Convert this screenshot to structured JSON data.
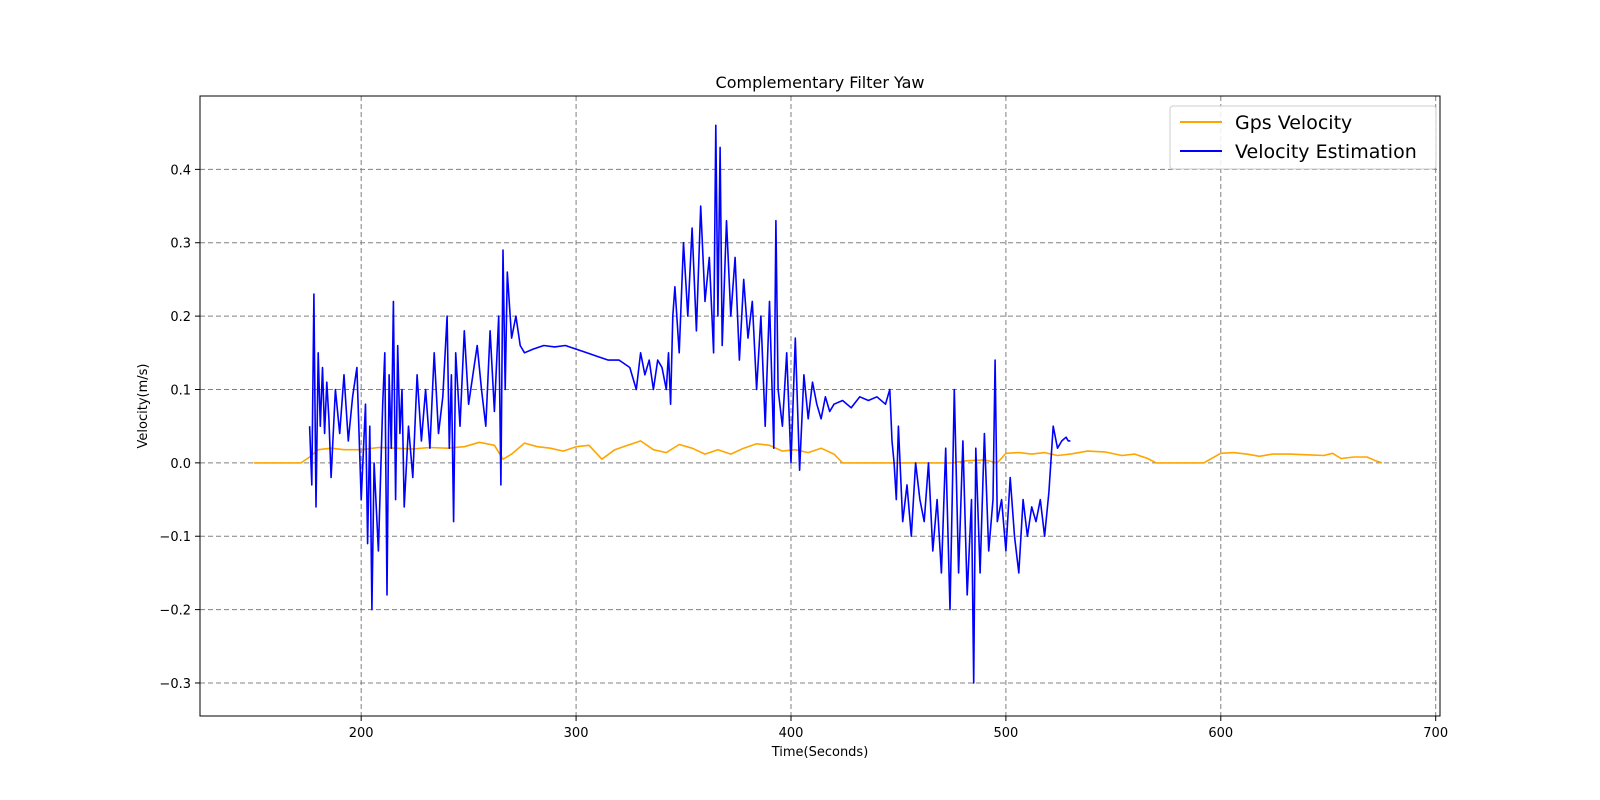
{
  "chart_data": {
    "type": "line",
    "title": "Complementary Filter Yaw",
    "xlabel": "Time(Seconds)",
    "ylabel": "Velocity(m/s)",
    "xlim": [
      125,
      702
    ],
    "ylim": [
      -0.345,
      0.5
    ],
    "xticks": [
      200,
      300,
      400,
      500,
      600,
      700
    ],
    "yticks": [
      -0.3,
      -0.2,
      -0.1,
      0.0,
      0.1,
      0.2,
      0.3,
      0.4
    ],
    "xtick_labels": [
      "200",
      "300",
      "400",
      "500",
      "600",
      "700"
    ],
    "ytick_labels": [
      "−0.3",
      "−0.2",
      "−0.1",
      "0.0",
      "0.1",
      "0.2",
      "0.3",
      "0.4"
    ],
    "grid": true,
    "legend_position": "top-right",
    "series": [
      {
        "name": "Gps Velocity",
        "color": "#ffa500",
        "x": [
          150,
          172,
          176,
          180,
          186,
          192,
          200,
          208,
          216,
          224,
          232,
          240,
          248,
          255,
          262,
          266,
          270,
          276,
          282,
          288,
          294,
          300,
          306,
          312,
          318,
          324,
          330,
          336,
          342,
          348,
          354,
          360,
          366,
          372,
          378,
          384,
          390,
          396,
          402,
          408,
          414,
          420,
          424,
          440,
          450,
          460,
          475,
          482,
          490,
          496,
          500,
          506,
          512,
          518,
          524,
          530,
          538,
          546,
          554,
          560,
          566,
          570,
          580,
          592,
          600,
          606,
          612,
          618,
          624,
          632,
          640,
          648,
          652,
          656,
          662,
          668,
          672,
          675
        ],
        "y": [
          0.0,
          0.0,
          0.008,
          0.018,
          0.02,
          0.018,
          0.018,
          0.021,
          0.02,
          0.019,
          0.021,
          0.02,
          0.022,
          0.028,
          0.024,
          0.005,
          0.012,
          0.027,
          0.022,
          0.02,
          0.016,
          0.022,
          0.024,
          0.005,
          0.018,
          0.024,
          0.03,
          0.018,
          0.014,
          0.025,
          0.02,
          0.012,
          0.018,
          0.012,
          0.02,
          0.026,
          0.024,
          0.016,
          0.018,
          0.014,
          0.02,
          0.012,
          0.0,
          0.0,
          0.0,
          0.0,
          0.0,
          0.003,
          0.004,
          0.0,
          0.013,
          0.014,
          0.012,
          0.014,
          0.01,
          0.012,
          0.016,
          0.015,
          0.01,
          0.012,
          0.006,
          0.0,
          0.0,
          0.0,
          0.013,
          0.014,
          0.012,
          0.009,
          0.012,
          0.012,
          0.011,
          0.01,
          0.013,
          0.006,
          0.008,
          0.008,
          0.003,
          0.0
        ]
      },
      {
        "name": "Velocity Estimation",
        "color": "#0000ff",
        "x": [
          176,
          177,
          178,
          179,
          180,
          181,
          182,
          183,
          184,
          185,
          186,
          188,
          190,
          192,
          194,
          196,
          198,
          200,
          202,
          203,
          204,
          205,
          206,
          208,
          210,
          211,
          212,
          213,
          214,
          215,
          216,
          217,
          218,
          219,
          220,
          222,
          224,
          226,
          228,
          230,
          232,
          234,
          236,
          238,
          240,
          241,
          242,
          243,
          244,
          246,
          248,
          250,
          252,
          254,
          256,
          258,
          260,
          262,
          264,
          265,
          266,
          267,
          268,
          270,
          272,
          274,
          276,
          280,
          285,
          290,
          295,
          300,
          305,
          310,
          315,
          320,
          325,
          328,
          330,
          332,
          334,
          336,
          338,
          340,
          342,
          343,
          344,
          345,
          346,
          348,
          350,
          352,
          354,
          356,
          358,
          360,
          362,
          364,
          365,
          366,
          367,
          368,
          370,
          372,
          374,
          376,
          378,
          380,
          382,
          384,
          386,
          388,
          390,
          392,
          393,
          394,
          396,
          398,
          400,
          402,
          404,
          406,
          408,
          410,
          412,
          414,
          416,
          418,
          420,
          424,
          428,
          432,
          436,
          440,
          444,
          446,
          447,
          448,
          449,
          450,
          452,
          454,
          456,
          458,
          460,
          462,
          464,
          466,
          468,
          470,
          472,
          474,
          475,
          476,
          478,
          480,
          482,
          484,
          485,
          486,
          488,
          490,
          492,
          494,
          495,
          496,
          498,
          500,
          502,
          504,
          506,
          508,
          510,
          512,
          514,
          516,
          518,
          520,
          522,
          524,
          526,
          528,
          529,
          530
        ],
        "y": [
          0.05,
          -0.03,
          0.23,
          -0.06,
          0.15,
          0.05,
          0.13,
          0.04,
          0.11,
          0.06,
          -0.02,
          0.1,
          0.04,
          0.12,
          0.03,
          0.09,
          0.13,
          -0.05,
          0.08,
          -0.11,
          0.05,
          -0.2,
          0.0,
          -0.12,
          0.08,
          0.15,
          -0.18,
          0.12,
          0.02,
          0.22,
          -0.05,
          0.16,
          0.04,
          0.1,
          -0.06,
          0.05,
          -0.02,
          0.12,
          0.03,
          0.1,
          0.02,
          0.15,
          0.04,
          0.09,
          0.2,
          0.02,
          0.12,
          -0.08,
          0.15,
          0.05,
          0.18,
          0.08,
          0.12,
          0.16,
          0.1,
          0.05,
          0.18,
          0.07,
          0.2,
          -0.03,
          0.29,
          0.1,
          0.26,
          0.17,
          0.2,
          0.16,
          0.15,
          0.155,
          0.16,
          0.158,
          0.16,
          0.155,
          0.15,
          0.145,
          0.14,
          0.14,
          0.13,
          0.1,
          0.15,
          0.12,
          0.14,
          0.1,
          0.14,
          0.13,
          0.1,
          0.15,
          0.08,
          0.2,
          0.24,
          0.15,
          0.3,
          0.2,
          0.32,
          0.18,
          0.35,
          0.22,
          0.28,
          0.15,
          0.46,
          0.2,
          0.43,
          0.16,
          0.33,
          0.2,
          0.28,
          0.14,
          0.25,
          0.17,
          0.22,
          0.1,
          0.2,
          0.05,
          0.22,
          0.02,
          0.33,
          0.1,
          0.05,
          0.15,
          0.0,
          0.17,
          -0.01,
          0.12,
          0.06,
          0.11,
          0.08,
          0.06,
          0.09,
          0.07,
          0.08,
          0.085,
          0.075,
          0.09,
          0.085,
          0.09,
          0.08,
          0.1,
          0.03,
          0.0,
          -0.05,
          0.05,
          -0.08,
          -0.03,
          -0.1,
          0.0,
          -0.05,
          -0.08,
          0.0,
          -0.12,
          -0.05,
          -0.15,
          0.02,
          -0.2,
          -0.05,
          0.1,
          -0.15,
          0.03,
          -0.18,
          -0.05,
          -0.3,
          0.02,
          -0.15,
          0.04,
          -0.12,
          -0.05,
          0.14,
          -0.08,
          -0.05,
          -0.12,
          -0.02,
          -0.1,
          -0.15,
          -0.05,
          -0.1,
          -0.06,
          -0.08,
          -0.05,
          -0.1,
          -0.04,
          0.05,
          0.02,
          0.03,
          0.035,
          0.03,
          0.03
        ]
      }
    ]
  }
}
